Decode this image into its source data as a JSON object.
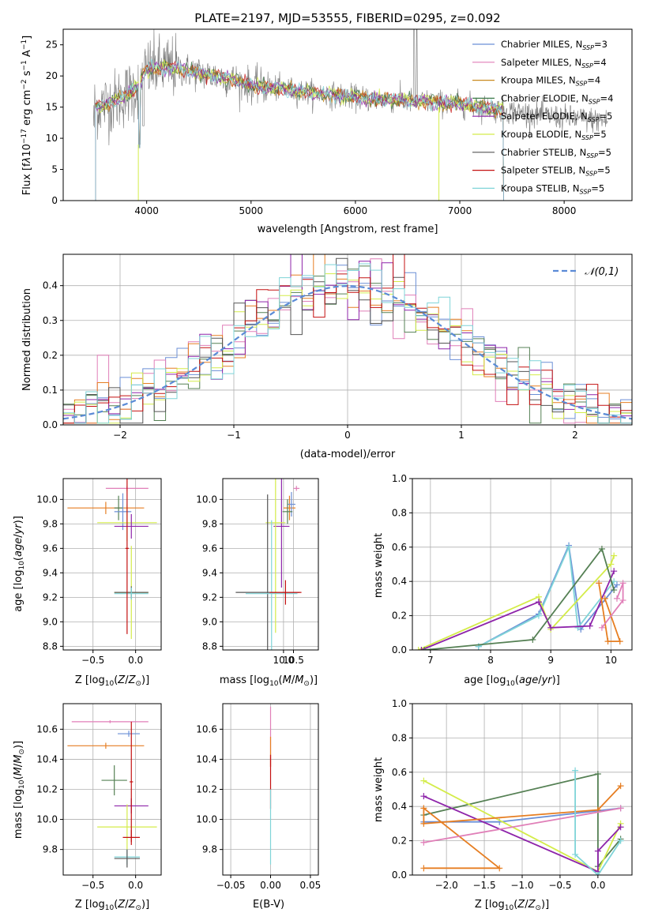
{
  "colors": {
    "chabrier_miles": "#6b8fd6",
    "salpeter_miles": "#e07fb8",
    "kroupa_miles": "#c98a1e",
    "chabrier_elodie": "#3f7a4a",
    "salpeter_elodie": "#8e24aa",
    "kroupa_elodie": "#d4ec4a",
    "chabrier_stelib": "#555555",
    "salpeter_stelib": "#c41010",
    "kroupa_stelib": "#7fd4d8",
    "orange": "#e67e22",
    "dark_green": "#558054",
    "dashed_normal": "#5b8bd6",
    "grid": "#b0b0b0",
    "spectrum_gray": "#7a7a7a"
  },
  "chart_data": [
    {
      "id": "spectrum",
      "type": "line",
      "title": "PLATE=2197, MJD=53555, FIBERID=0295, z=0.092",
      "xlabel": "wavelength [Angstrom, rest frame]",
      "ylabel_html": "Flux [fλ10⁻¹⁷ erg cm⁻² s⁻¹ A⁻¹]",
      "xlim": [
        3200,
        8650
      ],
      "ylim": [
        0,
        27.5
      ],
      "xticks": [
        4000,
        5000,
        6000,
        7000,
        8000
      ],
      "yticks": [
        0,
        5,
        10,
        15,
        20,
        25
      ],
      "grid": false,
      "legend_position": "top-right",
      "legend": [
        {
          "label": "Chabrier MILES, N",
          "sub": "SSP",
          "suffix": "=3",
          "color_key": "chabrier_miles"
        },
        {
          "label": "Salpeter MILES, N",
          "sub": "SSP",
          "suffix": "=4",
          "color_key": "salpeter_miles"
        },
        {
          "label": "Kroupa MILES, N",
          "sub": "SSP",
          "suffix": "=4",
          "color_key": "kroupa_miles"
        },
        {
          "label": "Chabrier ELODIE, N",
          "sub": "SSP",
          "suffix": "=4",
          "color_key": "chabrier_elodie"
        },
        {
          "label": "Salpeter ELODIE, N",
          "sub": "SSP",
          "suffix": "=5",
          "color_key": "salpeter_elodie"
        },
        {
          "label": "Kroupa ELODIE, N",
          "sub": "SSP",
          "suffix": "=5",
          "color_key": "kroupa_elodie"
        },
        {
          "label": "Chabrier STELIB, N",
          "sub": "SSP",
          "suffix": "=5",
          "color_key": "chabrier_stelib"
        },
        {
          "label": "Salpeter STELIB, N",
          "sub": "SSP",
          "suffix": "=5",
          "color_key": "salpeter_stelib"
        },
        {
          "label": "Kroupa STELIB, N",
          "sub": "SSP",
          "suffix": "=5",
          "color_key": "kroupa_stelib"
        }
      ],
      "continuum": [
        [
          3500,
          15
        ],
        [
          3700,
          16
        ],
        [
          3900,
          18
        ],
        [
          4000,
          21
        ],
        [
          4200,
          21.5
        ],
        [
          4500,
          20.5
        ],
        [
          4800,
          19.5
        ],
        [
          5000,
          18.5
        ],
        [
          5500,
          17.5
        ],
        [
          6000,
          16.5
        ],
        [
          6500,
          16
        ],
        [
          7000,
          15.5
        ],
        [
          7400,
          14.5
        ],
        [
          8000,
          13.3
        ],
        [
          8400,
          12.8
        ]
      ],
      "model_end": 7420,
      "model_start": 3510
    },
    {
      "id": "residuals",
      "type": "bar",
      "xlabel": "(data-model)/error",
      "ylabel": "Normed distribution",
      "xlim": [
        -2.5,
        2.5
      ],
      "ylim": [
        0,
        0.49
      ],
      "xticks": [
        -2,
        -1,
        0,
        1,
        2
      ],
      "yticks": [
        0.0,
        0.1,
        0.2,
        0.3,
        0.4
      ],
      "grid": true,
      "legend_position": "top-right",
      "legend_label": "𝒩(0,1)",
      "bin_width": 0.1
    },
    {
      "id": "age_vs_Z",
      "type": "scatter",
      "xlabel": "Z [log₁₀(Z/Z⊙)]",
      "ylabel": "age  [log₁₀(age/yr)]",
      "xlim": [
        -0.85,
        0.3
      ],
      "ylim": [
        8.77,
        10.17
      ],
      "xticks": [
        -0.5,
        0.0
      ],
      "yticks": [
        8.8,
        9.0,
        9.2,
        9.4,
        9.6,
        9.8,
        10.0
      ],
      "grid": true
    },
    {
      "id": "age_vs_mass",
      "type": "scatter",
      "xlabel": "mass [log₁₀(M/M⊙)]",
      "xlim": [
        6.95,
        11.75
      ],
      "ylim": [
        8.77,
        10.17
      ],
      "xticks": [
        10.0,
        10.5
      ],
      "xtick_values": [
        10.0,
        10.5
      ],
      "yticks": [
        8.8,
        9.0,
        9.2,
        9.4,
        9.6,
        9.8,
        10.0
      ],
      "grid": true
    },
    {
      "id": "weight_vs_age",
      "type": "line",
      "xlabel": "age  [log₁₀(age/yr)]",
      "ylabel": "mass weight",
      "xlim": [
        6.7,
        10.35
      ],
      "ylim": [
        0,
        1.0
      ],
      "xticks": [
        7,
        8,
        9,
        10
      ],
      "yticks": [
        0.0,
        0.2,
        0.4,
        0.6,
        0.8,
        1.0
      ],
      "grid": true,
      "series": [
        {
          "color_key": "chabrier_miles",
          "points": [
            [
              7.8,
              0.02
            ],
            [
              8.8,
              0.21
            ],
            [
              9.3,
              0.61
            ],
            [
              9.5,
              0.12
            ],
            [
              10.1,
              0.38
            ]
          ]
        },
        {
          "color_key": "kroupa_stelib",
          "points": [
            [
              7.8,
              0.02
            ],
            [
              8.8,
              0.2
            ],
            [
              9.3,
              0.6
            ],
            [
              9.45,
              0.13
            ],
            [
              10.05,
              0.4
            ]
          ]
        },
        {
          "color_key": "kroupa_elodie",
          "points": [
            [
              6.8,
              0.0
            ],
            [
              8.8,
              0.31
            ],
            [
              9.0,
              0.12
            ],
            [
              10.0,
              0.5
            ],
            [
              10.05,
              0.55
            ]
          ]
        },
        {
          "color_key": "salpeter_elodie",
          "points": [
            [
              6.85,
              0.0
            ],
            [
              8.8,
              0.28
            ],
            [
              9.0,
              0.13
            ],
            [
              9.65,
              0.14
            ],
            [
              10.05,
              0.46
            ]
          ]
        },
        {
          "color_key": "dark_green",
          "points": [
            [
              6.9,
              0.0
            ],
            [
              8.7,
              0.06
            ],
            [
              9.85,
              0.59
            ],
            [
              10.05,
              0.35
            ]
          ]
        },
        {
          "color_key": "orange",
          "points": [
            [
              9.8,
              0.39
            ],
            [
              9.95,
              0.05
            ],
            [
              10.15,
              0.05
            ],
            [
              9.9,
              0.3
            ]
          ]
        },
        {
          "color_key": "salpeter_miles",
          "points": [
            [
              9.85,
              0.13
            ],
            [
              10.2,
              0.29
            ],
            [
              10.2,
              0.39
            ],
            [
              10.1,
              0.3
            ]
          ]
        }
      ]
    },
    {
      "id": "mass_vs_Z",
      "type": "scatter",
      "xlabel": "Z [log₁₀(Z/Z⊙)]",
      "ylabel": "mass [log₁₀(M/M⊙)]",
      "xlim": [
        -0.85,
        0.3
      ],
      "ylim": [
        9.63,
        10.77
      ],
      "xticks": [
        -0.5,
        0.0
      ],
      "yticks": [
        9.8,
        10.0,
        10.2,
        10.4,
        10.6
      ],
      "grid": true
    },
    {
      "id": "mass_vs_EBV",
      "type": "scatter",
      "xlabel": "E(B-V)",
      "xlim": [
        -0.06,
        0.06
      ],
      "ylim": [
        9.63,
        10.77
      ],
      "xticks": [
        -0.05,
        0.0,
        0.05
      ],
      "xtick_labels": [
        "−0.05",
        "0.00",
        "0.05"
      ],
      "yticks": [
        9.8,
        10.0,
        10.2,
        10.4,
        10.6
      ],
      "grid": true
    },
    {
      "id": "weight_vs_Z",
      "type": "line",
      "xlabel": "Z [log₁₀(Z/Z⊙)]",
      "ylabel": "mass weight",
      "xlim": [
        -2.45,
        0.45
      ],
      "ylim": [
        0,
        1.0
      ],
      "xticks": [
        -2.0,
        -1.5,
        -1.0,
        -0.5,
        0.0
      ],
      "xtick_labels": [
        "−2.0",
        "−1.5",
        "−1.0",
        "−0.5",
        "0.0"
      ],
      "yticks": [
        0.0,
        0.2,
        0.4,
        0.6,
        0.8,
        1.0
      ],
      "grid": true,
      "series": [
        {
          "color_key": "chabrier_miles",
          "points": [
            [
              -2.3,
              0.31
            ],
            [
              -1.3,
              0.31
            ],
            [
              0.3,
              0.39
            ]
          ]
        },
        {
          "color_key": "dark_green",
          "points": [
            [
              -2.3,
              0.35
            ],
            [
              0.0,
              0.59
            ],
            [
              0.0,
              0.05
            ],
            [
              0.3,
              0.21
            ]
          ]
        },
        {
          "color_key": "kroupa_elodie",
          "points": [
            [
              -2.3,
              0.55
            ],
            [
              0.0,
              0.02
            ],
            [
              0.3,
              0.3
            ]
          ]
        },
        {
          "color_key": "salpeter_elodie",
          "points": [
            [
              -2.3,
              0.46
            ],
            [
              0.0,
              0.02
            ],
            [
              0.0,
              0.14
            ],
            [
              0.3,
              0.28
            ]
          ]
        },
        {
          "color_key": "orange",
          "points": [
            [
              -2.3,
              0.04
            ],
            [
              -1.3,
              0.04
            ],
            [
              -2.3,
              0.39
            ],
            [
              -2.3,
              0.3
            ],
            [
              0.0,
              0.38
            ],
            [
              0.3,
              0.52
            ]
          ]
        },
        {
          "color_key": "salpeter_miles",
          "points": [
            [
              -2.3,
              0.19
            ],
            [
              0.3,
              0.39
            ]
          ]
        },
        {
          "color_key": "kroupa_stelib",
          "points": [
            [
              -0.3,
              0.61
            ],
            [
              -0.3,
              0.12
            ],
            [
              0.0,
              0.0
            ],
            [
              0.3,
              0.2
            ]
          ]
        }
      ]
    }
  ]
}
